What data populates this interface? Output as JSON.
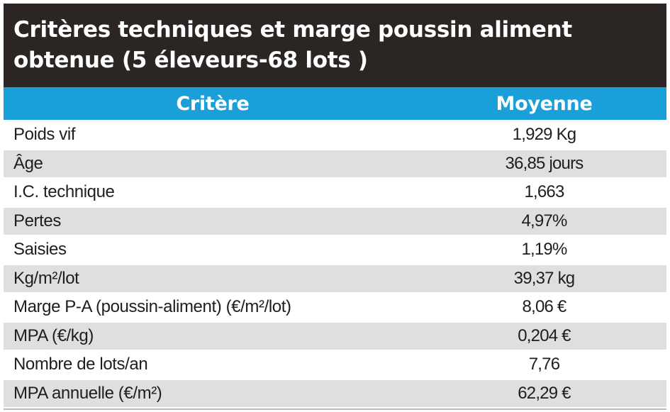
{
  "title": {
    "line1": "Critères techniques et marge poussin aliment",
    "line2": "obtenue (5 éleveurs-68 lots )"
  },
  "table": {
    "headers": [
      "Critère",
      "Moyenne"
    ],
    "rows": [
      {
        "label": "Poids vif",
        "value": "1,929 Kg"
      },
      {
        "label": "Âge",
        "value": "36,85 jours"
      },
      {
        "label": "I.C. technique",
        "value": "1,663"
      },
      {
        "label": "Pertes",
        "value": "4,97%"
      },
      {
        "label": "Saisies",
        "value": "1,19%"
      },
      {
        "label": "Kg/m²/lot",
        "value": "39,37 kg"
      },
      {
        "label": "Marge P-A (poussin-aliment) (€/m²/lot)",
        "value": "8,06 €"
      },
      {
        "label": "MPA (€/kg)",
        "value": "0,204 €"
      },
      {
        "label": "Nombre de lots/an",
        "value": "7,76"
      },
      {
        "label": "MPA annuelle (€/m²)",
        "value": "62,29 €"
      }
    ]
  },
  "colors": {
    "title_background": "#2b2623",
    "header_background": "#1b9fd8",
    "stripe_background": "#dfdfdf"
  }
}
